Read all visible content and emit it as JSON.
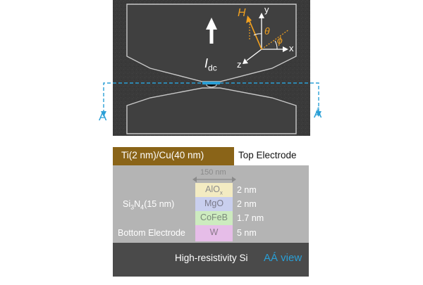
{
  "sem": {
    "current_label": "I",
    "current_sub": "dc",
    "axes": {
      "y": "y",
      "x": "x",
      "z": "z",
      "h": "H",
      "theta": "θ",
      "phi": "ϕ"
    },
    "section_left": "A",
    "section_right": "Á"
  },
  "stack": {
    "top_metal_label": "Ti(2 nm)/Cu(40 nm)",
    "top_electrode_label": "Top Electrode",
    "width_label": "150 nm",
    "si3n4_label_main": "Si",
    "si3n4_sub1": "3",
    "si3n4_mid": "N",
    "si3n4_sub2": "4",
    "si3n4_tail": "(15 nm)",
    "bottom_electrode_label": "Bottom Electrode",
    "substrate_label": "High-resistivity Si",
    "view_label": "AÁ view",
    "layers": [
      {
        "name": "AlO",
        "sub": "x",
        "thickness": "2 nm",
        "color": "#f3ebc2"
      },
      {
        "name": "MgO",
        "sub": "",
        "thickness": "2 nm",
        "color": "#c9cfee"
      },
      {
        "name": "CoFeB",
        "sub": "",
        "thickness": "1.7 nm",
        "color": "#cdebbf"
      },
      {
        "name": "W",
        "sub": "",
        "thickness": "5 nm",
        "color": "#e6bde8"
      }
    ]
  },
  "colors": {
    "orange": "#f0a020",
    "cyan": "#2a9fd6",
    "top_metal": "#8a6418",
    "oxide_gray": "#b4b4b4",
    "substrate": "#4a4a4a"
  }
}
